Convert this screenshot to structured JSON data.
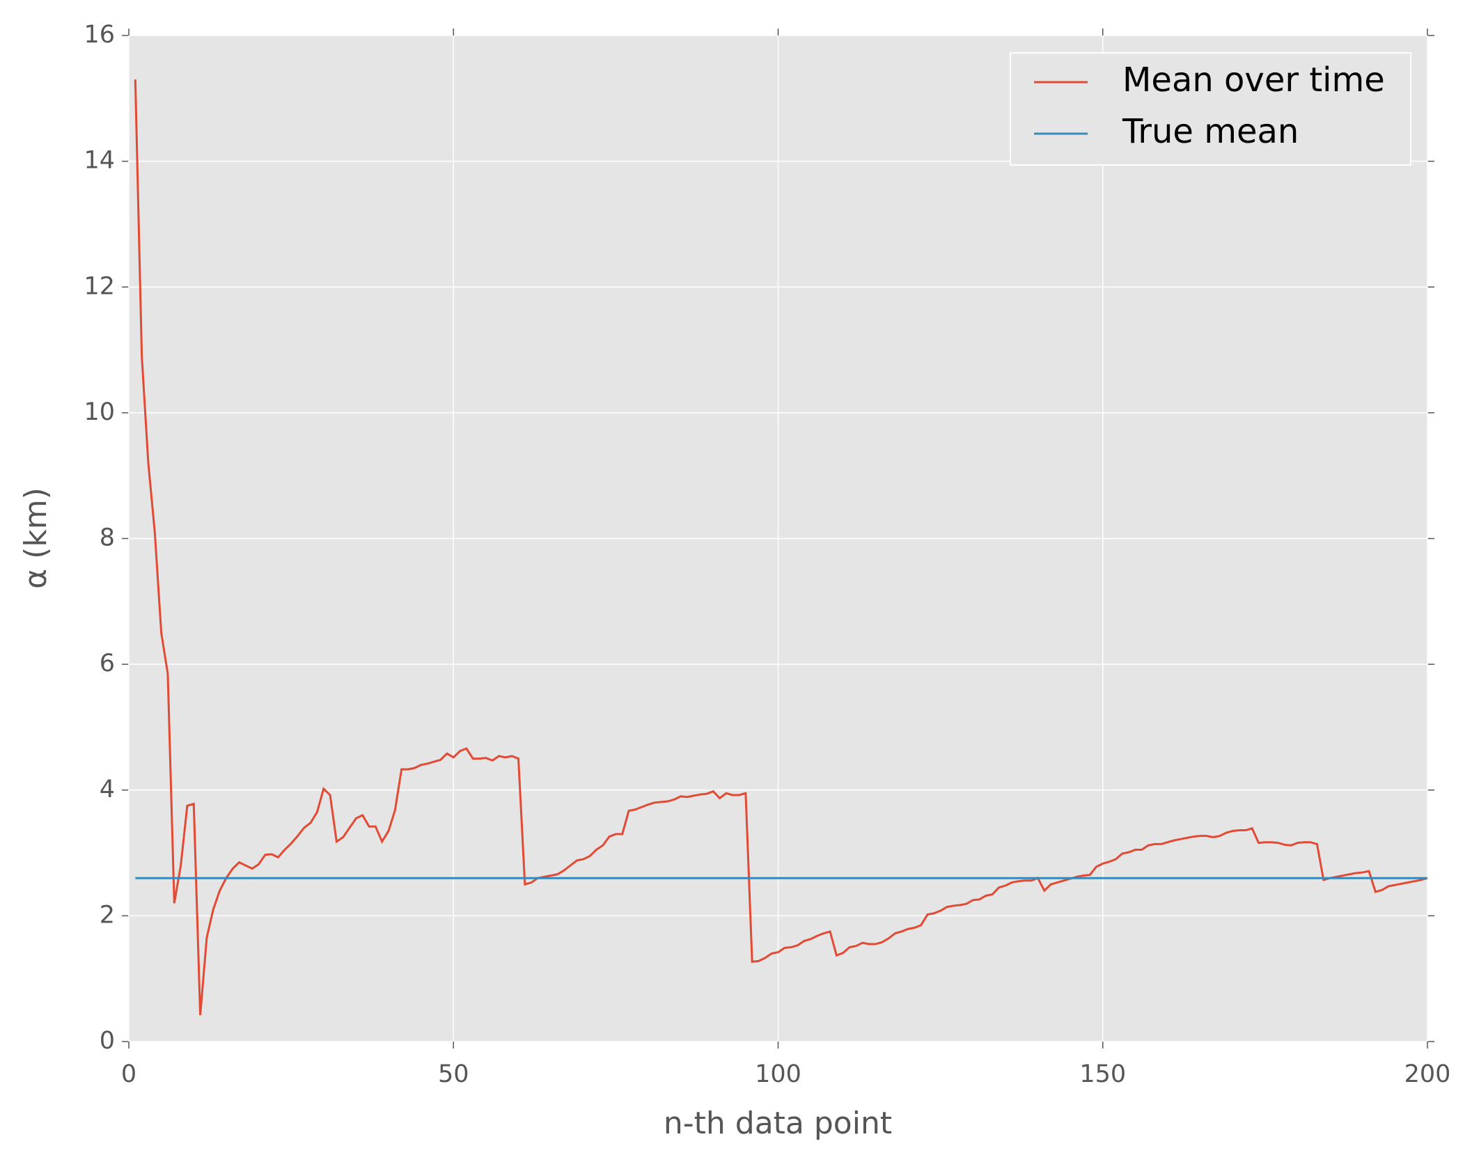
{
  "chart_data": {
    "type": "line",
    "xlabel": "n-th data point",
    "ylabel": "α (km)",
    "xlim": [
      0,
      200
    ],
    "xticks": [
      0,
      50,
      100,
      150,
      200
    ],
    "ylim": [
      0,
      16
    ],
    "yticks": [
      0,
      2,
      4,
      6,
      8,
      10,
      12,
      14,
      16
    ],
    "grid": true,
    "legend": "upper right",
    "series": [
      {
        "name": "Mean over time",
        "color": "#e24a33",
        "x": [
          1,
          2,
          3,
          4,
          5,
          6,
          7,
          8,
          9,
          10,
          11,
          12,
          13,
          14,
          15,
          16,
          17,
          18,
          19,
          20,
          21,
          22,
          23,
          24,
          25,
          26,
          27,
          28,
          29,
          30,
          31,
          32,
          33,
          34,
          35,
          36,
          37,
          38,
          39,
          40,
          41,
          42,
          43,
          44,
          45,
          46,
          47,
          48,
          49,
          50,
          51,
          52,
          53,
          54,
          55,
          56,
          57,
          58,
          59,
          60,
          61,
          62,
          63,
          64,
          65,
          66,
          67,
          68,
          69,
          70,
          71,
          72,
          73,
          74,
          75,
          76,
          77,
          78,
          79,
          80,
          81,
          82,
          83,
          84,
          85,
          86,
          87,
          88,
          89,
          90,
          91,
          92,
          93,
          94,
          95,
          96,
          97,
          98,
          99,
          100,
          101,
          102,
          103,
          104,
          105,
          106,
          107,
          108,
          109,
          110,
          111,
          112,
          113,
          114,
          115,
          116,
          117,
          118,
          119,
          120,
          121,
          122,
          123,
          124,
          125,
          126,
          127,
          128,
          129,
          130,
          131,
          132,
          133,
          134,
          135,
          136,
          137,
          138,
          139,
          140,
          141,
          142,
          143,
          144,
          145,
          146,
          147,
          148,
          149,
          150,
          151,
          152,
          153,
          154,
          155,
          156,
          157,
          158,
          159,
          160,
          161,
          162,
          163,
          164,
          165,
          166,
          167,
          168,
          169,
          170,
          171,
          172,
          173,
          174,
          175,
          176,
          177,
          178,
          179,
          180,
          181,
          182,
          183,
          184,
          185,
          186,
          187,
          188,
          189,
          190,
          191,
          192,
          193,
          194,
          195,
          196,
          197,
          198,
          199,
          200
        ],
        "values": [
          15.3,
          10.9,
          9.2,
          8.1,
          6.5,
          5.85,
          2.2,
          2.8,
          3.75,
          3.78,
          0.42,
          1.65,
          2.1,
          2.4,
          2.6,
          2.75,
          2.85,
          2.8,
          2.75,
          2.82,
          2.97,
          2.98,
          2.93,
          3.05,
          3.15,
          3.27,
          3.4,
          3.48,
          3.65,
          4.02,
          3.92,
          3.18,
          3.25,
          3.4,
          3.55,
          3.6,
          3.42,
          3.42,
          3.18,
          3.35,
          3.68,
          4.33,
          4.33,
          4.35,
          4.4,
          4.42,
          4.45,
          4.48,
          4.58,
          4.52,
          4.62,
          4.66,
          4.5,
          4.5,
          4.51,
          4.47,
          4.54,
          4.52,
          4.54,
          4.5,
          2.5,
          2.53,
          2.6,
          2.62,
          2.64,
          2.66,
          2.72,
          2.8,
          2.88,
          2.9,
          2.95,
          3.05,
          3.12,
          3.26,
          3.3,
          3.3,
          3.67,
          3.69,
          3.73,
          3.77,
          3.8,
          3.81,
          3.82,
          3.85,
          3.9,
          3.89,
          3.91,
          3.93,
          3.94,
          3.98,
          3.87,
          3.95,
          3.92,
          3.92,
          3.95,
          1.27,
          1.28,
          1.33,
          1.4,
          1.42,
          1.49,
          1.5,
          1.53,
          1.6,
          1.63,
          1.68,
          1.72,
          1.75,
          1.37,
          1.41,
          1.5,
          1.52,
          1.57,
          1.55,
          1.55,
          1.58,
          1.64,
          1.72,
          1.75,
          1.79,
          1.81,
          1.85,
          2.02,
          2.04,
          2.08,
          2.14,
          2.16,
          2.17,
          2.19,
          2.25,
          2.26,
          2.32,
          2.34,
          2.45,
          2.48,
          2.53,
          2.55,
          2.56,
          2.56,
          2.6,
          2.4,
          2.5,
          2.53,
          2.56,
          2.59,
          2.62,
          2.64,
          2.65,
          2.78,
          2.83,
          2.86,
          2.9,
          2.99,
          3.01,
          3.05,
          3.05,
          3.12,
          3.14,
          3.14,
          3.17,
          3.2,
          3.22,
          3.24,
          3.26,
          3.27,
          3.27,
          3.25,
          3.27,
          3.32,
          3.35,
          3.36,
          3.36,
          3.39,
          3.16,
          3.17,
          3.17,
          3.16,
          3.13,
          3.12,
          3.16,
          3.17,
          3.17,
          3.14,
          2.57,
          2.6,
          2.62,
          2.64,
          2.66,
          2.68,
          2.69,
          2.71,
          2.38,
          2.41,
          2.47,
          2.49,
          2.51,
          2.53,
          2.55,
          2.57,
          2.6
        ]
      },
      {
        "name": "True mean",
        "color": "#348abd",
        "x": [
          1,
          200
        ],
        "values": [
          2.6,
          2.6
        ]
      }
    ]
  }
}
